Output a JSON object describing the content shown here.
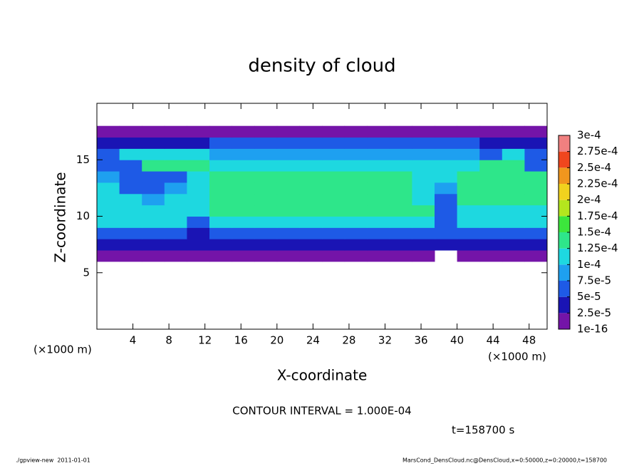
{
  "chart_data": {
    "type": "heatmap",
    "title": "density of cloud",
    "x_label": "X-coordinate",
    "y_label": "Z-coordinate",
    "x_unit": "(×1000 m)",
    "xlim": [
      0,
      50
    ],
    "ylim": [
      0,
      20
    ],
    "xticks": [
      4,
      8,
      12,
      16,
      20,
      24,
      28,
      32,
      36,
      40,
      44,
      48
    ],
    "yticks": [
      5,
      10,
      15
    ],
    "x": [
      1.25,
      3.75,
      6.25,
      8.75,
      11.25,
      13.75,
      16.25,
      18.75,
      21.25,
      23.75,
      26.25,
      28.75,
      31.25,
      33.75,
      36.25,
      38.75,
      41.25,
      43.75,
      46.25,
      48.75
    ],
    "y": [
      6.5,
      7.5,
      8.5,
      9.5,
      10.5,
      11.5,
      12.5,
      13.5,
      14.5,
      15.5,
      16.5,
      17.5
    ],
    "values": [
      [
        1e-05,
        1e-05,
        1e-05,
        1e-05,
        1e-05,
        1e-05,
        1e-05,
        1e-05,
        1e-05,
        1e-05,
        1e-05,
        1e-05,
        1e-05,
        1e-05,
        1e-05,
        null,
        1e-05,
        1e-05,
        1e-05,
        1e-05
      ],
      [
        4e-05,
        4e-05,
        3e-05,
        3e-05,
        3e-05,
        3e-05,
        3e-05,
        3e-05,
        3e-05,
        3e-05,
        3e-05,
        3e-05,
        3e-05,
        3e-05,
        3e-05,
        3e-05,
        3e-05,
        3e-05,
        3e-05,
        3e-05
      ],
      [
        6e-05,
        6e-05,
        6e-05,
        6e-05,
        3e-05,
        6e-05,
        6e-05,
        6e-05,
        6e-05,
        6e-05,
        6e-05,
        6e-05,
        6e-05,
        6e-05,
        6e-05,
        6e-05,
        6e-05,
        6e-05,
        6e-05,
        6e-05
      ],
      [
        0.00011,
        0.00011,
        0.00011,
        0.0001,
        5e-05,
        0.00011,
        0.00011,
        0.00011,
        0.00011,
        0.00011,
        0.00011,
        0.00011,
        0.00011,
        0.00011,
        0.00011,
        5e-05,
        0.00011,
        0.00011,
        0.00011,
        0.00011
      ],
      [
        0.00012,
        0.00012,
        0.00012,
        0.00012,
        0.00012,
        0.00013,
        0.00013,
        0.00013,
        0.00013,
        0.00013,
        0.00013,
        0.00013,
        0.00013,
        0.00013,
        0.00013,
        6e-05,
        0.00012,
        0.00012,
        0.00012,
        0.00012
      ],
      [
        0.00012,
        0.0001,
        8e-05,
        0.0001,
        0.00012,
        0.00013,
        0.00014,
        0.00014,
        0.00014,
        0.00014,
        0.00014,
        0.00014,
        0.00014,
        0.00014,
        0.0001,
        7e-05,
        0.00013,
        0.00013,
        0.00013,
        0.00013
      ],
      [
        0.00012,
        6e-05,
        6e-05,
        8e-05,
        0.00012,
        0.00014,
        0.00014,
        0.00014,
        0.00014,
        0.00014,
        0.00014,
        0.00014,
        0.00014,
        0.00014,
        0.0001,
        9e-05,
        0.000135,
        0.000135,
        0.000135,
        0.000135
      ],
      [
        9e-05,
        5e-05,
        5e-05,
        5e-05,
        0.00012,
        0.00013,
        0.00013,
        0.00013,
        0.00013,
        0.00013,
        0.00013,
        0.00013,
        0.00013,
        0.00013,
        0.00011,
        0.0001,
        0.000135,
        0.000135,
        0.000135,
        0.000135
      ],
      [
        7e-05,
        7e-05,
        0.00013,
        0.00013,
        0.00013,
        0.00012,
        0.00012,
        0.00012,
        0.00012,
        0.00012,
        0.00012,
        0.00012,
        0.00012,
        0.00012,
        0.0001,
        0.0001,
        0.0001,
        0.00013,
        0.00013,
        7e-05
      ],
      [
        6e-05,
        0.00012,
        0.00012,
        0.00012,
        0.00012,
        9e-05,
        9e-05,
        9e-05,
        9e-05,
        9e-05,
        9e-05,
        9e-05,
        9e-05,
        9e-05,
        8e-05,
        8e-05,
        8e-05,
        5e-05,
        0.00011,
        5e-05
      ],
      [
        4e-05,
        4e-05,
        4e-05,
        4e-05,
        4e-05,
        6e-05,
        6e-05,
        6e-05,
        6e-05,
        6e-05,
        6e-05,
        6e-05,
        6e-05,
        6e-05,
        5e-05,
        5e-05,
        5e-05,
        3e-05,
        3e-05,
        3e-05
      ],
      [
        1.5e-05,
        1.5e-05,
        1.5e-05,
        1.5e-05,
        1.5e-05,
        1.5e-05,
        1.5e-05,
        1.5e-05,
        1.5e-05,
        1.5e-05,
        1.5e-05,
        1.5e-05,
        1.5e-05,
        1.5e-05,
        1.5e-05,
        1.5e-05,
        1.5e-05,
        1e-05,
        1e-05,
        1e-05
      ]
    ],
    "colorbar": {
      "levels": [
        1e-16,
        {
          "value": 2.5e-05,
          "label": "2.5e-5"
        },
        {
          "value": 5e-05,
          "label": "5e-5"
        },
        {
          "value": 7.5e-05,
          "label": "7.5e-5"
        },
        {
          "value": 0.0001,
          "label": "1e-4"
        },
        {
          "value": 0.000125,
          "label": "1.25e-4"
        },
        {
          "value": 0.00015,
          "label": "1.5e-4"
        },
        {
          "value": 0.000175,
          "label": "1.75e-4"
        },
        {
          "value": 0.0002,
          "label": "2e-4"
        },
        {
          "value": 0.000225,
          "label": "2.25e-4"
        },
        {
          "value": 0.00025,
          "label": "2.5e-4"
        },
        {
          "value": 0.000275,
          "label": "2.75e-4"
        },
        {
          "value": 0.0003,
          "label": "3e-4"
        }
      ],
      "colors": [
        "#7414a8",
        "#1a14b4",
        "#1e5ae6",
        "#1ea0f0",
        "#1ed8e0",
        "#2ee68a",
        "#3ce63c",
        "#b4e61e",
        "#f0d21e",
        "#f0961e",
        "#f0461e",
        "#f08080"
      ]
    },
    "contour_note": "CONTOUR INTERVAL = 1.000E-04",
    "time_note": "t=158700 s"
  },
  "footer": {
    "left": "./gpview-new  2011-01-01",
    "right": "MarsCond_DensCloud.nc@DensCloud,x=0:50000,z=0:20000,t=158700"
  }
}
